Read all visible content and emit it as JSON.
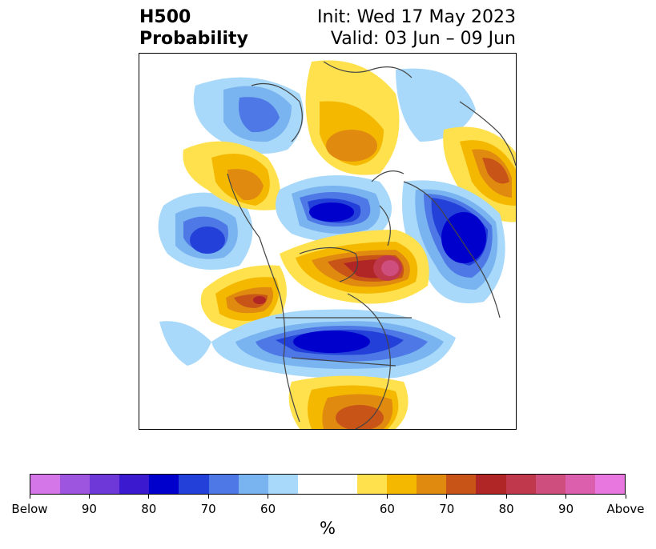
{
  "title": {
    "left_line1": "H500",
    "left_line2": "Probability",
    "right_line1": "Init: Wed 17 May 2023",
    "right_line2": "Valid: 03 Jun – 09 Jun"
  },
  "map": {
    "projection": "polar-stereographic-north",
    "regions": [
      {
        "name": "alaska-below",
        "category": "below",
        "intensity": 70
      },
      {
        "name": "north-pacific-below",
        "category": "below",
        "intensity": 70
      },
      {
        "name": "arctic-below",
        "category": "below",
        "intensity": 80
      },
      {
        "name": "hudson-above",
        "category": "above",
        "intensity": 85
      },
      {
        "name": "western-canada-above",
        "category": "above",
        "intensity": 70
      },
      {
        "name": "conus-below",
        "category": "below",
        "intensity": 80
      },
      {
        "name": "southern-us-above",
        "category": "above",
        "intensity": 70
      },
      {
        "name": "europe-below",
        "category": "below",
        "intensity": 80
      },
      {
        "name": "siberia-above",
        "category": "above",
        "intensity": 65
      },
      {
        "name": "asia-above",
        "category": "above",
        "intensity": 70
      }
    ]
  },
  "colorbar": {
    "colors": [
      "#d576e8",
      "#9d55e0",
      "#6e38d8",
      "#3a19cf",
      "#0000cc",
      "#2340d9",
      "#4d78e6",
      "#79b3f0",
      "#a8d8fa",
      "#ffffff",
      "#ffffff",
      "#ffe14d",
      "#f5b800",
      "#e08a10",
      "#c85418",
      "#b02525",
      "#c0384c",
      "#ce4f7e",
      "#dc5fae",
      "#e878e0"
    ],
    "ticks": [
      "Below",
      "90",
      "80",
      "70",
      "60",
      "60",
      "70",
      "80",
      "90",
      "Above"
    ],
    "label": "%"
  }
}
